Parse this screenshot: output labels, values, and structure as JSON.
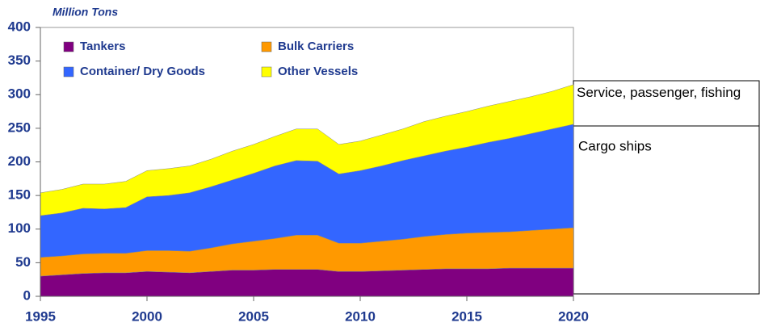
{
  "chart_data": {
    "type": "stacked-area",
    "y_label": "Million Tons",
    "x": [
      1995,
      1996,
      1997,
      1998,
      1999,
      2000,
      2001,
      2002,
      2003,
      2004,
      2005,
      2006,
      2007,
      2008,
      2009,
      2010,
      2011,
      2012,
      2013,
      2014,
      2015,
      2016,
      2017,
      2018,
      2019,
      2020
    ],
    "series": [
      {
        "name": "Tankers",
        "color": "#800080",
        "values": [
          30,
          32,
          34,
          35,
          35,
          37,
          36,
          35,
          37,
          39,
          39,
          40,
          40,
          40,
          37,
          37,
          38,
          39,
          40,
          41,
          41,
          41,
          42,
          42,
          42,
          42
        ]
      },
      {
        "name": "Bulk Carriers",
        "color": "#ff9900",
        "values": [
          28,
          28,
          29,
          29,
          29,
          31,
          32,
          32,
          35,
          39,
          43,
          46,
          51,
          51,
          42,
          42,
          44,
          46,
          49,
          51,
          53,
          54,
          54,
          56,
          58,
          60
        ]
      },
      {
        "name": "Container/ Dry Goods",
        "color": "#3366ff",
        "values": [
          62,
          64,
          68,
          66,
          68,
          80,
          82,
          87,
          91,
          95,
          101,
          108,
          111,
          110,
          103,
          108,
          112,
          117,
          120,
          124,
          128,
          134,
          139,
          144,
          149,
          154
        ]
      },
      {
        "name": "Other Vessels",
        "color": "#ffff00",
        "values": [
          34,
          35,
          36,
          37,
          39,
          39,
          40,
          40,
          41,
          43,
          43,
          44,
          47,
          48,
          44,
          44,
          46,
          47,
          51,
          52,
          53,
          54,
          55,
          55,
          56,
          59
        ]
      }
    ],
    "xlim": [
      1995,
      2020
    ],
    "xticks": [
      1995,
      2000,
      2005,
      2010,
      2015,
      2020
    ],
    "ylim": [
      0,
      400
    ],
    "yticks": [
      0,
      50,
      100,
      150,
      200,
      250,
      300,
      350,
      400
    ],
    "annotations": [
      "Service, passenger, fishing",
      "Cargo ships"
    ]
  }
}
